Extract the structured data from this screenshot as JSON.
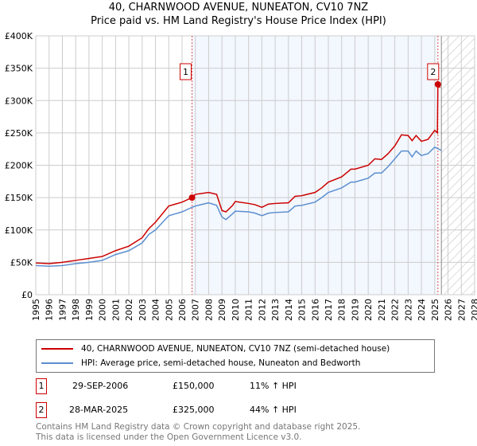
{
  "header": {
    "title_line1": "40, CHARNWOOD AVENUE, NUNEATON, CV10 7NZ",
    "title_line2": "Price paid vs. HM Land Registry's House Price Index (HPI)"
  },
  "chart_data": {
    "type": "line",
    "title": "40, CHARNWOOD AVENUE, NUNEATON, CV10 7NZ — Price paid vs. HM Land Registry's House Price Index (HPI)",
    "xlim": [
      1995,
      2028
    ],
    "ylim": [
      0,
      400000
    ],
    "x_ticks": [
      "1995",
      "1996",
      "1997",
      "1998",
      "1999",
      "2000",
      "2001",
      "2002",
      "2003",
      "2004",
      "2005",
      "2006",
      "2007",
      "2008",
      "2009",
      "2010",
      "2011",
      "2012",
      "2013",
      "2014",
      "2015",
      "2016",
      "2017",
      "2018",
      "2019",
      "2020",
      "2021",
      "2022",
      "2023",
      "2024",
      "2025",
      "2026",
      "2027",
      "2028"
    ],
    "y_ticks": [
      {
        "v": 0,
        "label": "£0"
      },
      {
        "v": 50000,
        "label": "£50K"
      },
      {
        "v": 100000,
        "label": "£100K"
      },
      {
        "v": 150000,
        "label": "£150K"
      },
      {
        "v": 200000,
        "label": "£200K"
      },
      {
        "v": 250000,
        "label": "£250K"
      },
      {
        "v": 300000,
        "label": "£300K"
      },
      {
        "v": 350000,
        "label": "£350K"
      },
      {
        "v": 400000,
        "label": "£400K"
      }
    ],
    "grid": true,
    "shaded_period": [
      2006.75,
      2025.24
    ],
    "forecast_hatch_from": 2025.5,
    "series": [
      {
        "name": "40, CHARNWOOD AVENUE, NUNEATON, CV10 7NZ (semi-detached house)",
        "color": "#cc0000",
        "x": [
          1995,
          1996,
          1997,
          1998,
          1999,
          2000,
          2001,
          2002,
          2003,
          2003.5,
          2004,
          2005,
          2005.5,
          2006,
          2006.75,
          2007,
          2008,
          2008.6,
          2009,
          2009.3,
          2009.8,
          2010,
          2011,
          2011.5,
          2012,
          2012.5,
          2013,
          2014,
          2014.5,
          2015,
          2016,
          2016.5,
          2017,
          2018,
          2018.7,
          2019,
          2020,
          2020.5,
          2021,
          2021.5,
          2022,
          2022.5,
          2023,
          2023.3,
          2023.6,
          2024,
          2024.5,
          2025,
          2025.2,
          2025.24,
          2025.4
        ],
        "y": [
          49000,
          48000,
          50000,
          53000,
          56000,
          59000,
          68000,
          75000,
          88000,
          102000,
          112000,
          137000,
          140000,
          143000,
          150000,
          155000,
          158000,
          155000,
          130000,
          128000,
          138000,
          144000,
          141000,
          139000,
          135000,
          140000,
          141000,
          142000,
          152000,
          153000,
          158000,
          165000,
          174000,
          182000,
          194000,
          194000,
          200000,
          210000,
          209000,
          218000,
          230000,
          247000,
          246000,
          238000,
          246000,
          237000,
          240000,
          254000,
          250000,
          325000,
          320000
        ]
      },
      {
        "name": "HPI: Average price, semi-detached house, Nuneaton and Bedworth",
        "color": "#5b8fd0",
        "x": [
          1995,
          1996,
          1997,
          1998,
          1999,
          2000,
          2001,
          2002,
          2003,
          2003.5,
          2004,
          2005,
          2005.5,
          2006,
          2006.75,
          2007,
          2008,
          2008.6,
          2009,
          2009.3,
          2009.8,
          2010,
          2011,
          2011.5,
          2012,
          2012.5,
          2013,
          2014,
          2014.5,
          2015,
          2016,
          2016.5,
          2017,
          2018,
          2018.7,
          2019,
          2020,
          2020.5,
          2021,
          2021.5,
          2022,
          2022.5,
          2023,
          2023.3,
          2023.6,
          2024,
          2024.5,
          2025,
          2025.5
        ],
        "y": [
          45000,
          44000,
          45000,
          48000,
          50000,
          53000,
          62000,
          68000,
          80000,
          93000,
          100000,
          122000,
          125000,
          128000,
          135000,
          137000,
          142000,
          138000,
          120000,
          116000,
          125000,
          129000,
          128000,
          126000,
          122000,
          126000,
          127000,
          128000,
          137000,
          138000,
          143000,
          150000,
          158000,
          165000,
          174000,
          174000,
          180000,
          188000,
          188000,
          198000,
          210000,
          222000,
          222000,
          213000,
          222000,
          215000,
          218000,
          228000,
          223000
        ]
      }
    ],
    "annotations": [
      {
        "label": "1",
        "x": 2006.75,
        "y": 150000
      },
      {
        "label": "2",
        "x": 2025.24,
        "y": 325000
      }
    ]
  },
  "legend": {
    "items": [
      {
        "label": "40, CHARNWOOD AVENUE, NUNEATON, CV10 7NZ (semi-detached house)",
        "color": "#cc0000"
      },
      {
        "label": "HPI: Average price, semi-detached house, Nuneaton and Bedworth",
        "color": "#5b8fd0"
      }
    ]
  },
  "transactions": [
    {
      "num": "1",
      "date": "29-SEP-2006",
      "price": "£150,000",
      "hpi": "11% ↑ HPI"
    },
    {
      "num": "2",
      "date": "28-MAR-2025",
      "price": "£325,000",
      "hpi": "44% ↑ HPI"
    }
  ],
  "footer": {
    "line1": "Contains HM Land Registry data © Crown copyright and database right 2025.",
    "line2": "This data is licensed under the Open Government Licence v3.0."
  }
}
